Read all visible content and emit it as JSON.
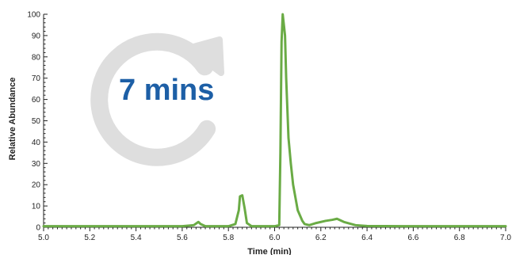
{
  "overlay": {
    "text": "7 mins",
    "text_color": "#1d5fa6",
    "icon": "circular-arrow-icon",
    "icon_color": "#dedede"
  },
  "chart_data": {
    "type": "line",
    "title": "",
    "xlabel": "Time (min)",
    "ylabel": "Relative Abundance",
    "xlim": [
      5.0,
      7.0
    ],
    "ylim": [
      0,
      100
    ],
    "x_ticks": [
      "5.0",
      "5.2",
      "5.4",
      "5.6",
      "5.8",
      "6.0",
      "6.2",
      "6.4",
      "6.6",
      "6.8",
      "7.0"
    ],
    "y_ticks": [
      "0",
      "10",
      "20",
      "30",
      "40",
      "50",
      "60",
      "70",
      "80",
      "90",
      "100"
    ],
    "grid": false,
    "line_color": "#6aab45",
    "series": [
      {
        "x": [
          5.0,
          5.2,
          5.4,
          5.6,
          5.65,
          5.67,
          5.68,
          5.7,
          5.8,
          5.83,
          5.845,
          5.85,
          5.86,
          5.87,
          5.88,
          5.9,
          5.95,
          6.0,
          6.02,
          6.025,
          6.03,
          6.035,
          6.04,
          6.045,
          6.05,
          6.06,
          6.07,
          6.08,
          6.1,
          6.12,
          6.13,
          6.15,
          6.18,
          6.22,
          6.25,
          6.27,
          6.3,
          6.35,
          6.4,
          6.6,
          6.8,
          7.0
        ],
        "y": [
          0.5,
          0.5,
          0.5,
          0.5,
          1,
          2.5,
          1.5,
          0.5,
          0.5,
          1.5,
          8,
          14.5,
          15,
          9,
          2,
          0.5,
          0.5,
          0.5,
          1,
          35,
          87,
          100,
          95,
          90,
          70,
          42,
          30,
          20,
          8,
          3,
          1.5,
          1,
          2,
          3,
          3.5,
          4,
          2.5,
          1,
          0.6,
          0.5,
          0.5,
          0.5
        ]
      }
    ]
  }
}
